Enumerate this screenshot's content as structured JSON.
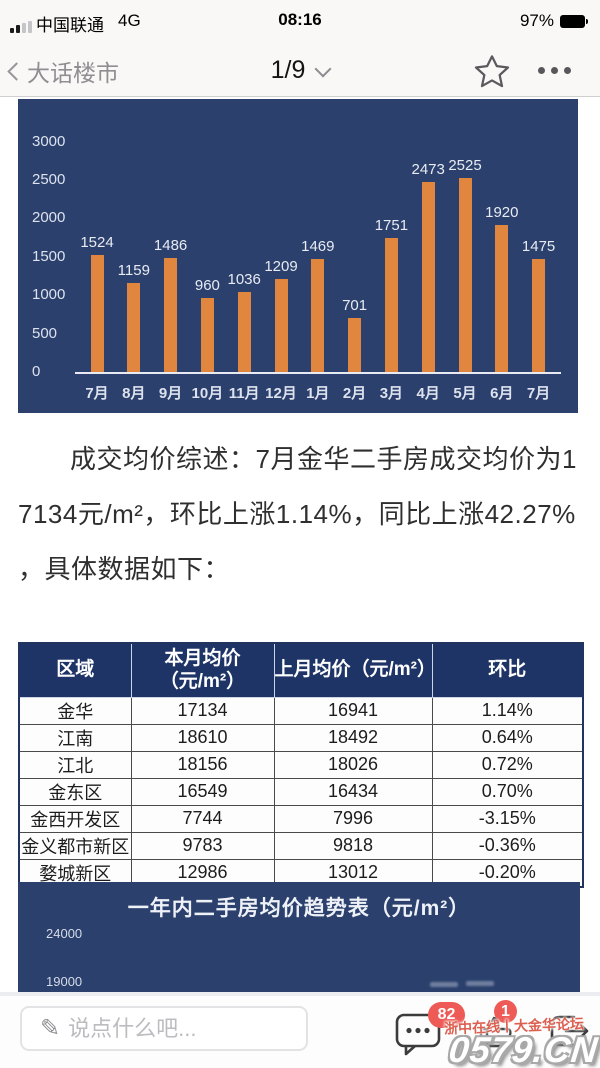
{
  "status_bar": {
    "carrier": "中国联通",
    "network": "4G",
    "time": "08:16",
    "battery_percent": "97%"
  },
  "nav_bar": {
    "back_label": "大话楼市",
    "page_indicator": "1/9"
  },
  "article": {
    "summary_lines": [
      "成交均价综述：7月金华二手房成交均价为1",
      "7134元/m²，环比上涨1.14%，同比上涨42.27%",
      "，具体数据如下："
    ]
  },
  "chart_data": [
    {
      "type": "bar",
      "title": "",
      "categories": [
        "7月",
        "8月",
        "9月",
        "10月",
        "11月",
        "12月",
        "1月",
        "2月",
        "3月",
        "4月",
        "5月",
        "6月",
        "7月"
      ],
      "values": [
        1524,
        1159,
        1486,
        960,
        1036,
        1209,
        1469,
        701,
        1751,
        2473,
        2525,
        1920,
        1475
      ],
      "ylim": [
        0,
        3000
      ],
      "yticks": [
        0,
        500,
        1000,
        1500,
        2000,
        2500,
        3000
      ],
      "grid": false,
      "legend": "none",
      "bar_color": "#e1863f",
      "background_color": "#2b406c",
      "label_color": "#e8ebf3"
    },
    {
      "type": "line",
      "title": "一年内二手房均价趋势表（元/m²）",
      "visible_yticks": [
        "24000",
        "19000"
      ],
      "background_color": "#2b406c"
    }
  ],
  "table": {
    "header_bg": "#1e3466",
    "headers": [
      "区域",
      "本月均价\n（元/m²）",
      "上月均价（元/m²）",
      "环比"
    ],
    "rows": [
      [
        "金华",
        "17134",
        "16941",
        "1.14%"
      ],
      [
        "江南",
        "18610",
        "18492",
        "0.64%"
      ],
      [
        "江北",
        "18156",
        "18026",
        "0.72%"
      ],
      [
        "金东区",
        "16549",
        "16434",
        "0.70%"
      ],
      [
        "金西开发区",
        "7744",
        "7996",
        "-3.15%"
      ],
      [
        "金义都市新区",
        "9783",
        "9818",
        "-0.36%"
      ],
      [
        "婺城新区",
        "12986",
        "13012",
        "-0.20%"
      ]
    ]
  },
  "composer": {
    "placeholder": "说点什么吧...",
    "comment_badge": "82",
    "like_badge": "1",
    "badge_color": "#ee5a55"
  },
  "watermark": {
    "site_label": "浙中在线丨大金华论坛",
    "domain": "0579.CN"
  }
}
